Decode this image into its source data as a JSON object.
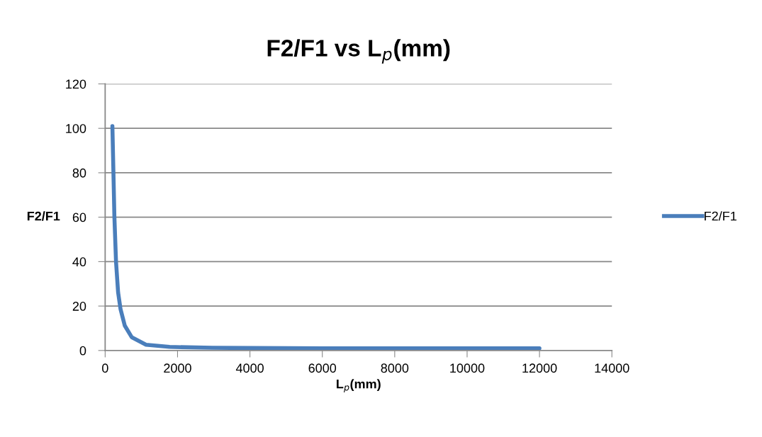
{
  "chart_data": {
    "type": "line",
    "title": "F2/F1 vs L$_{p}$(mm)",
    "xlabel": "L$_{p}$(mm)",
    "ylabel": "F2/F1",
    "x": [
      200,
      228,
      255,
      300,
      358,
      425,
      542,
      738,
      1130,
      1780,
      2960,
      4000,
      6000,
      8000,
      10000,
      12000
    ],
    "series": [
      {
        "name": "F2/F1",
        "color": "#4a7ebb",
        "values": [
          101,
          80.5,
          60.3,
          40,
          26.1,
          18.6,
          11.2,
          5.9,
          2.6,
          1.6,
          1.2,
          1.1,
          1,
          1,
          1,
          1
        ]
      }
    ],
    "xlim": [
      0,
      14000
    ],
    "xticks": [
      0,
      2000,
      4000,
      6000,
      8000,
      10000,
      12000,
      14000
    ],
    "ylim": [
      0,
      120
    ],
    "yticks": [
      0,
      20,
      40,
      60,
      80,
      100,
      120
    ],
    "grid": "y",
    "legend": "right",
    "marker": "none",
    "line_style": "solid"
  }
}
